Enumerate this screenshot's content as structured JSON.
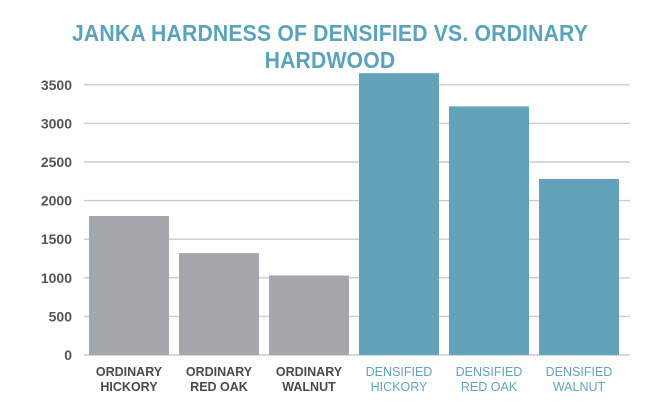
{
  "chart_data": {
    "type": "bar",
    "title": "JANKA HARDNESS OF DENSIFIED VS. ORDINARY HARDWOOD",
    "xlabel": "",
    "ylabel": "",
    "ylim": [
      0,
      3500
    ],
    "yticks": [
      0,
      500,
      1000,
      1500,
      2000,
      2500,
      3000,
      3500
    ],
    "grid": true,
    "categories": [
      [
        "ORDINARY",
        "HICKORY"
      ],
      [
        "ORDINARY",
        "RED OAK"
      ],
      [
        "ORDINARY",
        "WALNUT"
      ],
      [
        "DENSIFIED",
        "HICKORY"
      ],
      [
        "DENSIFIED",
        "RED OAK"
      ],
      [
        "DENSIFIED",
        "WALNUT"
      ]
    ],
    "values": [
      1800,
      1320,
      1030,
      3650,
      3220,
      2280
    ],
    "colors": {
      "ordinary": "#a3a6ab",
      "densified": "#62a3ba",
      "ordinary_label": "#4a4a4a",
      "densified_label": "#62a3ba",
      "grid": "#cccccc",
      "tick": "#555555"
    }
  }
}
